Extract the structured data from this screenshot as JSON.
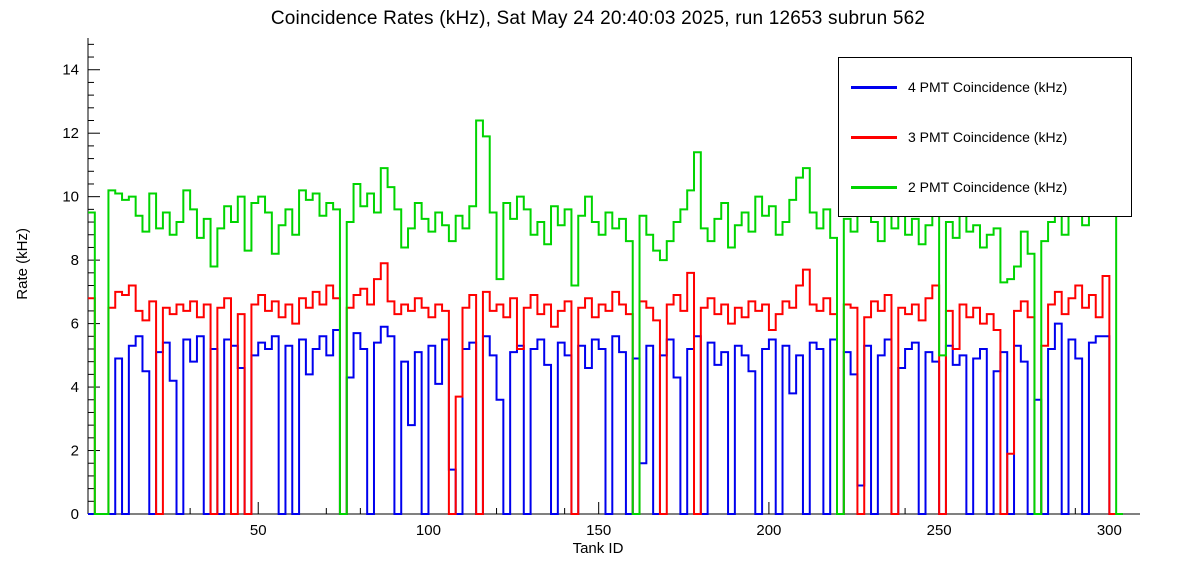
{
  "chart_data": {
    "type": "line",
    "subtype": "step-histogram",
    "title": "Coincidence Rates (kHz), Sat May 24 20:40:03 2025, run 12653 subrun 562",
    "xlabel": "Tank ID",
    "ylabel": "Rate (kHz)",
    "x_start": 2,
    "x_step": 2,
    "axes": {
      "x": {
        "min": 0,
        "max": 309,
        "major_ticks": [
          50,
          100,
          150,
          200,
          250,
          300
        ],
        "minor_step": 10
      },
      "y": {
        "min": 0,
        "max": 15,
        "major_ticks": [
          0,
          2,
          4,
          6,
          8,
          10,
          12,
          14
        ],
        "minor_step": 0.4
      }
    },
    "grid": false,
    "legend_position": "top-right",
    "series": [
      {
        "name": "4 PMT Coincidence (kHz)",
        "color": "#0000EE",
        "values": [
          0,
          0,
          0,
          0,
          4.9,
          0,
          5.3,
          5.6,
          4.5,
          0,
          5.1,
          5.4,
          4.2,
          0,
          5.5,
          4.8,
          5.6,
          0,
          5.2,
          0,
          5.5,
          5.3,
          4.6,
          0,
          5.0,
          5.4,
          5.2,
          5.6,
          0,
          5.3,
          0,
          5.5,
          4.4,
          5.2,
          5.6,
          5.0,
          5.8,
          0,
          4.3,
          5.7,
          5.2,
          0,
          5.4,
          5.9,
          5.6,
          0,
          4.8,
          2.8,
          5.1,
          0,
          5.3,
          4.1,
          5.5,
          1.4,
          0,
          5.2,
          5.4,
          0,
          5.6,
          5.0,
          3.6,
          0,
          5.1,
          5.3,
          0,
          5.2,
          5.5,
          4.7,
          0,
          5.4,
          5.0,
          0,
          5.3,
          4.6,
          5.5,
          5.2,
          0,
          5.6,
          5.1,
          0,
          4.9,
          1.6,
          5.3,
          0,
          5.0,
          5.5,
          4.3,
          0,
          5.2,
          5.6,
          0,
          5.4,
          4.7,
          5.1,
          0,
          5.3,
          5.0,
          4.5,
          0,
          5.2,
          5.5,
          0,
          5.3,
          3.8,
          5.0,
          0,
          5.4,
          5.2,
          0,
          5.5,
          0,
          5.1,
          4.4,
          0.9,
          5.3,
          0,
          5.0,
          5.5,
          0,
          4.6,
          5.2,
          5.4,
          0,
          5.1,
          4.8,
          0,
          5.3,
          4.7,
          5.0,
          0,
          4.9,
          5.2,
          0,
          4.5,
          5.1,
          0,
          5.3,
          4.8,
          0,
          3.6,
          0,
          5.2,
          6.0,
          0,
          5.5,
          4.9,
          0,
          5.4,
          5.6,
          5.6,
          0,
          0
        ]
      },
      {
        "name": "3 PMT Coincidence (kHz)",
        "color": "#FF0000",
        "values": [
          6.8,
          0,
          0,
          6.5,
          7.0,
          6.9,
          7.2,
          6.4,
          6.1,
          6.7,
          0,
          6.5,
          6.3,
          6.6,
          6.4,
          6.7,
          6.2,
          6.6,
          0,
          6.5,
          6.8,
          0,
          6.3,
          0,
          6.6,
          6.9,
          6.4,
          6.7,
          6.2,
          6.6,
          6.0,
          6.8,
          6.5,
          7.0,
          6.6,
          7.2,
          6.8,
          0,
          6.5,
          6.9,
          7.1,
          6.6,
          7.4,
          7.9,
          6.7,
          6.3,
          6.6,
          6.4,
          6.8,
          6.5,
          6.2,
          6.6,
          6.4,
          0,
          3.7,
          6.5,
          6.9,
          0,
          7.0,
          6.4,
          6.6,
          6.2,
          6.8,
          5.2,
          6.5,
          6.9,
          6.3,
          6.6,
          5.9,
          6.4,
          6.7,
          0,
          6.5,
          6.8,
          6.2,
          6.6,
          6.4,
          7.0,
          6.6,
          6.3,
          0,
          6.7,
          6.5,
          6.1,
          0,
          6.6,
          6.9,
          6.4,
          7.6,
          0,
          6.5,
          6.8,
          6.3,
          6.6,
          6.0,
          6.5,
          6.2,
          6.7,
          6.4,
          6.6,
          5.8,
          6.3,
          6.7,
          6.5,
          7.2,
          7.7,
          6.6,
          6.4,
          6.8,
          6.3,
          0,
          6.6,
          6.5,
          0,
          6.2,
          6.7,
          6.4,
          6.9,
          0,
          6.5,
          6.3,
          6.6,
          6.1,
          6.8,
          7.2,
          0,
          6.4,
          5.2,
          6.6,
          6.2,
          6.5,
          6.0,
          6.3,
          5.8,
          0,
          1.9,
          6.4,
          6.7,
          6.2,
          0,
          5.3,
          6.6,
          7.0,
          6.3,
          6.8,
          7.2,
          6.5,
          6.9,
          6.2,
          7.5,
          0,
          0
        ]
      },
      {
        "name": "2 PMT Coincidence (kHz)",
        "color": "#00D400",
        "values": [
          9.5,
          0,
          0,
          10.2,
          10.1,
          9.9,
          10.0,
          9.4,
          8.9,
          10.1,
          9.0,
          9.5,
          8.8,
          9.2,
          10.2,
          9.6,
          8.7,
          9.3,
          7.8,
          9.0,
          9.7,
          9.2,
          10.0,
          8.3,
          9.8,
          10.0,
          9.5,
          8.2,
          9.1,
          9.6,
          8.8,
          10.2,
          9.9,
          10.1,
          9.4,
          9.8,
          9.6,
          0,
          9.2,
          10.4,
          9.7,
          10.1,
          9.5,
          10.9,
          10.3,
          9.6,
          8.4,
          9.0,
          9.8,
          9.3,
          8.9,
          9.5,
          9.1,
          8.6,
          9.4,
          9.0,
          9.7,
          12.4,
          11.9,
          9.5,
          7.4,
          9.8,
          9.3,
          10.0,
          9.6,
          8.8,
          9.2,
          8.5,
          9.7,
          9.1,
          9.6,
          7.2,
          9.4,
          10.0,
          9.2,
          8.8,
          9.5,
          9.0,
          9.3,
          8.6,
          0,
          9.4,
          8.8,
          8.3,
          8.0,
          8.6,
          9.2,
          9.6,
          10.2,
          11.4,
          9.0,
          8.6,
          9.3,
          9.8,
          8.4,
          9.1,
          9.5,
          8.9,
          10.0,
          9.4,
          9.7,
          8.8,
          9.2,
          9.9,
          10.6,
          10.9,
          9.5,
          9.0,
          9.6,
          8.7,
          0,
          9.3,
          8.9,
          9.5,
          9.8,
          9.2,
          8.6,
          9.4,
          9.0,
          9.6,
          8.8,
          9.3,
          8.5,
          9.1,
          9.5,
          5.0,
          9.2,
          8.7,
          9.4,
          8.9,
          9.1,
          8.4,
          8.8,
          9.0,
          7.3,
          7.4,
          7.8,
          8.9,
          8.2,
          0,
          8.6,
          9.2,
          9.6,
          8.8,
          9.4,
          10.0,
          9.1,
          9.7,
          10.2,
          10.4,
          10.5,
          0
        ]
      }
    ]
  }
}
